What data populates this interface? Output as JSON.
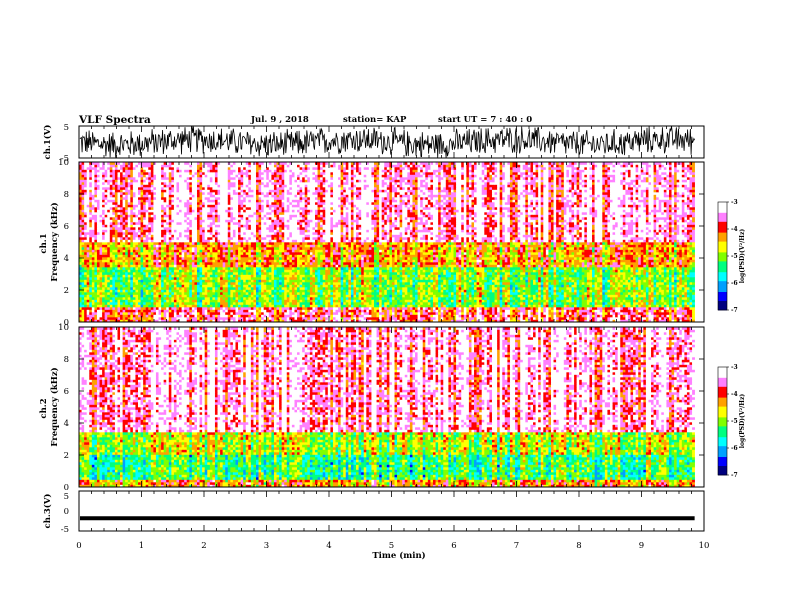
{
  "header": {
    "title": "VLF Spectra",
    "date": "Jul. 9 , 2018",
    "station": "station= KAP",
    "start": "start UT = 7 : 40 : 0"
  },
  "chart_data": [
    {
      "type": "line",
      "name": "ch1-waveform",
      "ylabel": "ch.1(V)",
      "ylim": [
        -5,
        5
      ],
      "yticks": [
        "5",
        "-5"
      ],
      "xlim": [
        0,
        10
      ],
      "data_end_min": 9.85,
      "description_values": "noisy waveform oscillating roughly between -5 and 5 V",
      "color": "#000000"
    },
    {
      "type": "heatmap",
      "name": "ch1-spectrogram",
      "ylabel": "ch.1\nFrequency (kHz)",
      "ylabel_lines": [
        "ch.1",
        "Frequency (kHz)"
      ],
      "ylim": [
        0,
        10
      ],
      "yticks": [
        "0",
        "2",
        "4",
        "6",
        "8",
        "10"
      ],
      "xlim": [
        0,
        10
      ],
      "data_end_min": 9.85,
      "color_bar": {
        "label": "log(PSD)(V²/Hz)",
        "range": [
          -7,
          -3
        ],
        "ticks": [
          "-3",
          "-4",
          "-5",
          "-6",
          "-7"
        ]
      },
      "bands": [
        {
          "from_khz": 5.0,
          "to_khz": 10.0,
          "level": -3.4
        },
        {
          "from_khz": 3.5,
          "to_khz": 5.0,
          "level": -4.3
        },
        {
          "from_khz": 1.0,
          "to_khz": 3.5,
          "level": -5.0
        },
        {
          "from_khz": 0.0,
          "to_khz": 1.0,
          "level": -3.8
        }
      ]
    },
    {
      "type": "heatmap",
      "name": "ch2-spectrogram",
      "ylabel": "ch.2\nFrequency (kHz)",
      "ylabel_lines": [
        "ch.2",
        "Frequency (kHz)"
      ],
      "ylim": [
        0,
        10
      ],
      "yticks": [
        "0",
        "2",
        "4",
        "6",
        "8",
        "10"
      ],
      "xlim": [
        0,
        10
      ],
      "data_end_min": 9.85,
      "color_bar": {
        "label": "log(PSD)(V²/Hz)",
        "range": [
          -7,
          -3
        ],
        "ticks": [
          "-3",
          "-4",
          "-5",
          "-6",
          "-7"
        ]
      },
      "bands": [
        {
          "from_khz": 3.5,
          "to_khz": 10.0,
          "level": -3.4
        },
        {
          "from_khz": 2.0,
          "to_khz": 3.5,
          "level": -4.8
        },
        {
          "from_khz": 0.5,
          "to_khz": 2.0,
          "level": -5.3
        },
        {
          "from_khz": 0.0,
          "to_khz": 0.5,
          "level": -4.3
        }
      ]
    },
    {
      "type": "line",
      "name": "ch3-waveform",
      "ylabel": "ch.3(V)",
      "ylim": [
        -5,
        5
      ],
      "yticks": [
        "5",
        "0",
        "-5"
      ],
      "xlim": [
        0,
        10
      ],
      "data_end_min": 9.85,
      "constant_value": -1.8,
      "color": "#000000"
    }
  ],
  "x_axis": {
    "label": "Time (min)",
    "ticks": [
      "0",
      "1",
      "2",
      "3",
      "4",
      "5",
      "6",
      "7",
      "8",
      "9",
      "10"
    ],
    "range": [
      0,
      10
    ]
  },
  "colormap": [
    "#00007f",
    "#0000ff",
    "#00a0ff",
    "#00ffff",
    "#00ff80",
    "#80ff00",
    "#ffff00",
    "#ffa000",
    "#ff0000",
    "#ff80ff",
    "#ffffff"
  ]
}
